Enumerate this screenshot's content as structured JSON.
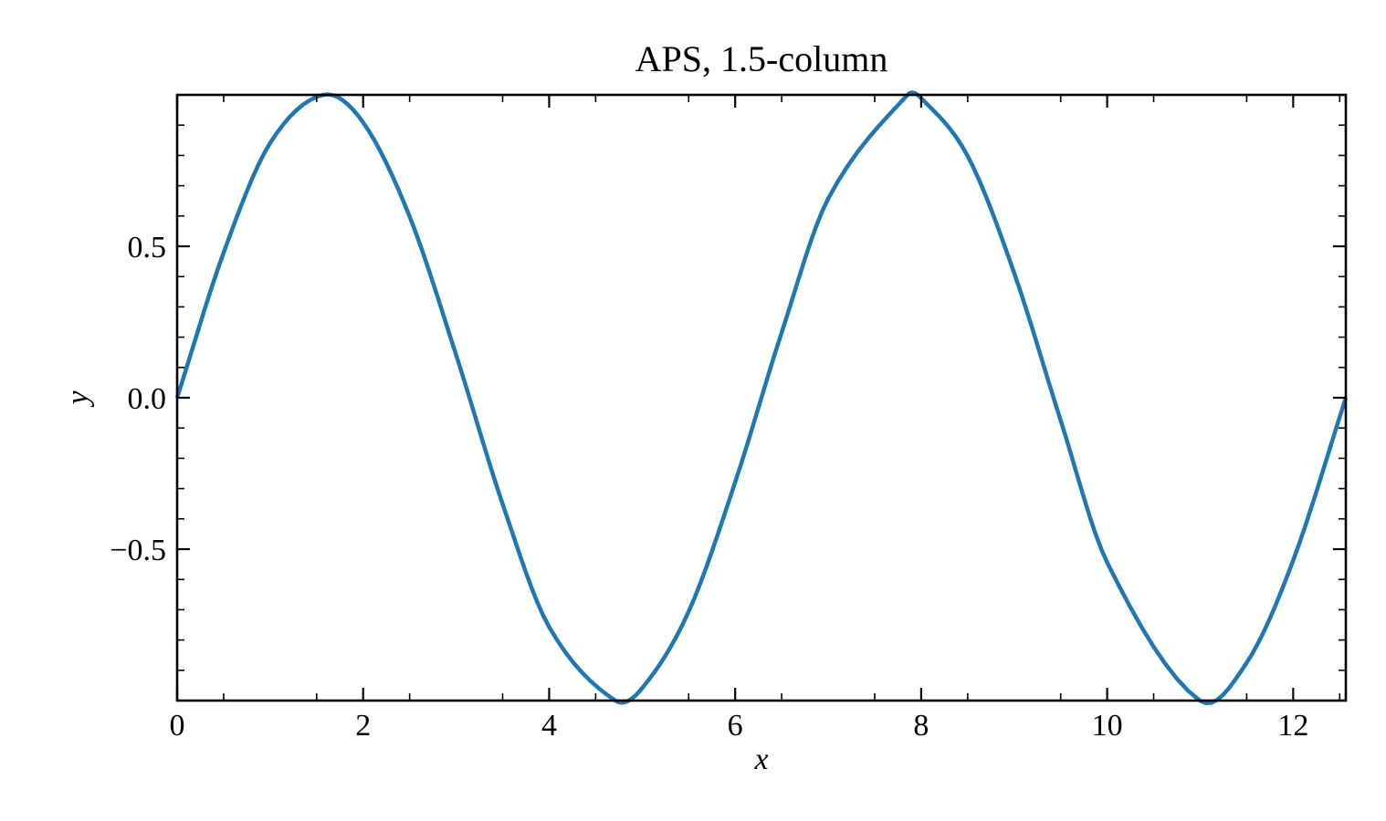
{
  "chart_data": {
    "type": "line",
    "title": "APS, 1.5-column",
    "xlabel": "x",
    "ylabel": "y",
    "xlim": [
      0,
      12.566
    ],
    "ylim": [
      -1.0,
      1.0
    ],
    "x_ticks": [
      0,
      2,
      4,
      6,
      8,
      10,
      12
    ],
    "x_tick_labels": [
      "0",
      "2",
      "4",
      "6",
      "8",
      "10",
      "12"
    ],
    "y_ticks": [
      0.5,
      0.0,
      -0.5
    ],
    "y_tick_labels": [
      "0.5",
      "0.0",
      "−0.5"
    ],
    "grid": false,
    "legend": "none",
    "series": [
      {
        "color": "#1f77b4",
        "x": [
          0,
          0.5,
          1,
          1.5708,
          2,
          2.5,
          3,
          3.5,
          4,
          4.7124,
          5,
          5.5,
          6,
          6.5,
          7,
          7.854,
          8,
          8.5,
          9,
          9.5,
          10,
          10.9956,
          11.5,
          12,
          12.566
        ],
        "y": [
          0,
          0.479,
          0.841,
          1.0,
          0.909,
          0.598,
          0.141,
          -0.351,
          -0.757,
          -1.0,
          -0.959,
          -0.706,
          -0.279,
          0.215,
          0.657,
          1.0,
          0.989,
          0.798,
          0.412,
          -0.075,
          -0.544,
          -1.0,
          -0.875,
          -0.537,
          0
        ]
      }
    ]
  }
}
